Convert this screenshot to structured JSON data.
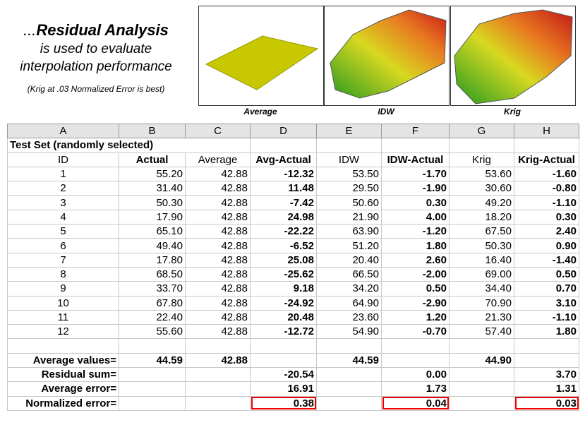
{
  "header": {
    "lead": "...",
    "title": "Residual Analysis",
    "lines": [
      "is used to evaluate",
      "interpolation performance"
    ],
    "note": "(Krig at .03 Normalized Error is best)"
  },
  "images": [
    {
      "caption": "Average"
    },
    {
      "caption": "IDW"
    },
    {
      "caption": "Krig"
    }
  ],
  "table": {
    "columns": [
      "A",
      "B",
      "C",
      "D",
      "E",
      "F",
      "G",
      "H"
    ],
    "title": "Test Set (randomly selected)",
    "header": [
      "ID",
      "Actual",
      "Average",
      "Avg-Actual",
      "IDW",
      "IDW-Actual",
      "Krig",
      "Krig-Actual"
    ],
    "rows": [
      [
        "1",
        "55.20",
        "42.88",
        "-12.32",
        "53.50",
        "-1.70",
        "53.60",
        "-1.60"
      ],
      [
        "2",
        "31.40",
        "42.88",
        "11.48",
        "29.50",
        "-1.90",
        "30.60",
        "-0.80"
      ],
      [
        "3",
        "50.30",
        "42.88",
        "-7.42",
        "50.60",
        "0.30",
        "49.20",
        "-1.10"
      ],
      [
        "4",
        "17.90",
        "42.88",
        "24.98",
        "21.90",
        "4.00",
        "18.20",
        "0.30"
      ],
      [
        "5",
        "65.10",
        "42.88",
        "-22.22",
        "63.90",
        "-1.20",
        "67.50",
        "2.40"
      ],
      [
        "6",
        "49.40",
        "42.88",
        "-6.52",
        "51.20",
        "1.80",
        "50.30",
        "0.90"
      ],
      [
        "7",
        "17.80",
        "42.88",
        "25.08",
        "20.40",
        "2.60",
        "16.40",
        "-1.40"
      ],
      [
        "8",
        "68.50",
        "42.88",
        "-25.62",
        "66.50",
        "-2.00",
        "69.00",
        "0.50"
      ],
      [
        "9",
        "33.70",
        "42.88",
        "9.18",
        "34.20",
        "0.50",
        "34.40",
        "0.70"
      ],
      [
        "10",
        "67.80",
        "42.88",
        "-24.92",
        "64.90",
        "-2.90",
        "70.90",
        "3.10"
      ],
      [
        "11",
        "22.40",
        "42.88",
        "20.48",
        "23.60",
        "1.20",
        "21.30",
        "-1.10"
      ],
      [
        "12",
        "55.60",
        "42.88",
        "-12.72",
        "54.90",
        "-0.70",
        "57.40",
        "1.80"
      ]
    ],
    "summary": [
      {
        "label": "Average values=",
        "values": [
          "44.59",
          "42.88",
          null,
          "44.59",
          null,
          "44.90",
          null
        ]
      },
      {
        "label": "Residual sum=",
        "values": [
          null,
          null,
          "-20.54",
          null,
          "0.00",
          null,
          "3.70"
        ]
      },
      {
        "label": "Average error=",
        "values": [
          null,
          null,
          "16.91",
          null,
          "1.73",
          null,
          "1.31"
        ]
      },
      {
        "label": "Normalized error=",
        "values": [
          null,
          null,
          "0.38",
          null,
          "0.04",
          null,
          "0.03"
        ]
      }
    ]
  }
}
